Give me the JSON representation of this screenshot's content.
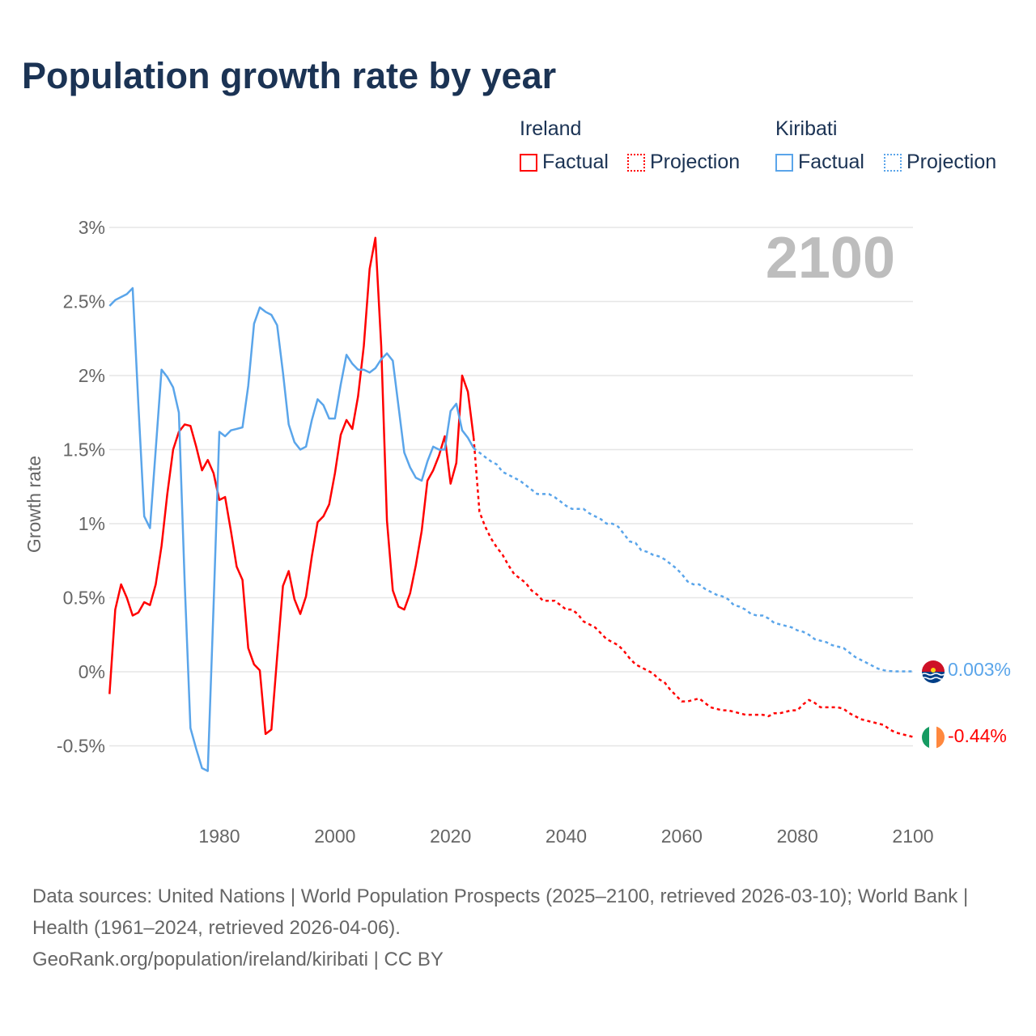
{
  "chart_data": {
    "type": "line",
    "title": "Population growth rate by year",
    "ylabel": "Growth rate",
    "xlabel": "",
    "year_overlay": "2100",
    "xlim": [
      1961,
      2100
    ],
    "ylim": [
      -0.75,
      3
    ],
    "x_ticks": [
      1980,
      2000,
      2020,
      2040,
      2060,
      2080,
      2100
    ],
    "y_ticks": [
      -0.5,
      0,
      0.5,
      1,
      1.5,
      2,
      2.5,
      3
    ],
    "y_tick_labels": [
      "-0.5%",
      "0%",
      "0.5%",
      "1%",
      "1.5%",
      "2%",
      "2.5%",
      "3%"
    ],
    "grid": true,
    "legend_position": "top-right",
    "series": [
      {
        "name": "Ireland",
        "color": "#ff0000",
        "end_label": "-0.44%",
        "factual_label": "Factual",
        "projection_label": "Projection",
        "factual_start": 1961,
        "factual": [
          -0.15,
          0.42,
          0.59,
          0.5,
          0.38,
          0.4,
          0.47,
          0.45,
          0.59,
          0.85,
          1.2,
          1.5,
          1.62,
          1.67,
          1.66,
          1.52,
          1.36,
          1.43,
          1.34,
          1.16,
          1.18,
          0.95,
          0.71,
          0.62,
          0.16,
          0.05,
          0.01,
          -0.42,
          -0.39,
          0.1,
          0.58,
          0.68,
          0.49,
          0.39,
          0.51,
          0.78,
          1.01,
          1.05,
          1.13,
          1.34,
          1.6,
          1.7,
          1.64,
          1.86,
          2.2,
          2.72,
          2.93,
          2.2,
          1.02,
          0.55,
          0.44,
          0.42,
          0.53,
          0.72,
          0.95,
          1.29,
          1.36,
          1.46,
          1.59,
          1.27,
          1.41,
          2.0,
          1.89,
          1.58
        ],
        "projection_start": 2024,
        "projection": [
          1.58,
          1.08,
          0.98,
          0.9,
          0.84,
          0.79,
          0.72,
          0.66,
          0.63,
          0.6,
          0.55,
          0.52,
          0.48,
          0.48,
          0.48,
          0.45,
          0.42,
          0.42,
          0.39,
          0.34,
          0.32,
          0.3,
          0.26,
          0.22,
          0.2,
          0.18,
          0.14,
          0.09,
          0.05,
          0.03,
          0.01,
          -0.01,
          -0.05,
          -0.07,
          -0.12,
          -0.16,
          -0.2,
          -0.2,
          -0.19,
          -0.18,
          -0.21,
          -0.24,
          -0.25,
          -0.26,
          -0.26,
          -0.27,
          -0.28,
          -0.29,
          -0.29,
          -0.29,
          -0.29,
          -0.3,
          -0.28,
          -0.28,
          -0.27,
          -0.26,
          -0.26,
          -0.22,
          -0.19,
          -0.21,
          -0.24,
          -0.24,
          -0.24,
          -0.24,
          -0.25,
          -0.28,
          -0.3,
          -0.32,
          -0.33,
          -0.34,
          -0.35,
          -0.36,
          -0.39,
          -0.41,
          -0.42,
          -0.43,
          -0.44
        ]
      },
      {
        "name": "Kiribati",
        "color": "#5aa5ea",
        "end_label": "0.003%",
        "factual_label": "Factual",
        "projection_label": "Projection",
        "factual_start": 1961,
        "factual": [
          2.47,
          2.51,
          2.53,
          2.55,
          2.59,
          1.8,
          1.05,
          0.97,
          1.5,
          2.04,
          1.99,
          1.92,
          1.75,
          0.6,
          -0.38,
          -0.52,
          -0.65,
          -0.67,
          0.45,
          1.62,
          1.59,
          1.63,
          1.64,
          1.65,
          1.93,
          2.35,
          2.46,
          2.43,
          2.41,
          2.34,
          2.02,
          1.67,
          1.55,
          1.5,
          1.52,
          1.7,
          1.84,
          1.8,
          1.71,
          1.71,
          1.94,
          2.14,
          2.08,
          2.04,
          2.04,
          2.02,
          2.05,
          2.11,
          2.15,
          2.1,
          1.79,
          1.48,
          1.38,
          1.31,
          1.29,
          1.42,
          1.52,
          1.5,
          1.5,
          1.76,
          1.81,
          1.63,
          1.58,
          1.51
        ],
        "projection_start": 2024,
        "projection": [
          1.51,
          1.48,
          1.45,
          1.42,
          1.4,
          1.35,
          1.33,
          1.31,
          1.29,
          1.26,
          1.23,
          1.2,
          1.2,
          1.2,
          1.18,
          1.15,
          1.12,
          1.1,
          1.1,
          1.1,
          1.07,
          1.05,
          1.03,
          1.0,
          1.0,
          0.98,
          0.93,
          0.88,
          0.87,
          0.82,
          0.81,
          0.79,
          0.78,
          0.76,
          0.73,
          0.7,
          0.66,
          0.61,
          0.59,
          0.59,
          0.56,
          0.54,
          0.52,
          0.51,
          0.49,
          0.45,
          0.44,
          0.42,
          0.39,
          0.38,
          0.38,
          0.36,
          0.33,
          0.32,
          0.31,
          0.3,
          0.28,
          0.27,
          0.25,
          0.22,
          0.21,
          0.2,
          0.18,
          0.17,
          0.16,
          0.13,
          0.1,
          0.08,
          0.06,
          0.04,
          0.02,
          0.01,
          0.005,
          0.003,
          0.003,
          0.003,
          0.003
        ]
      }
    ]
  },
  "footer": {
    "source_line": "Data sources: United Nations | World Population Prospects (2025–2100, retrieved 2026-03-10); World Bank | Health (1961–2024, retrieved 2026-04-06).",
    "attribution": "GeoRank.org/population/ireland/kiribati | CC BY"
  }
}
